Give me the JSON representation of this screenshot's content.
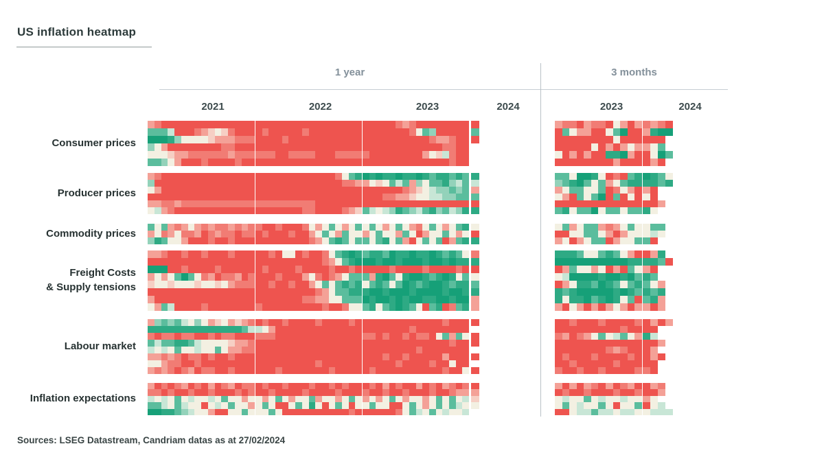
{
  "title": "US inflation heatmap",
  "footer": {
    "sources": "Sources: LSEG Datastream, Candriam datas as at 27/02/2024"
  },
  "chart_data": {
    "type": "heatmap",
    "title": "US inflation heatmap",
    "value_encoding": "each char is a palette index 0-9 (0 = deep green / disinflation, 5 = neutral cream, 9 = deep red / inflation); '.' = no data",
    "palette": [
      "#16a078",
      "#2eaa84",
      "#5bbd9d",
      "#93d2ba",
      "#c8e6d6",
      "#f3f0e2",
      "#f6cfc4",
      "#f4a197",
      "#f17c74",
      "#ee544f"
    ],
    "sections": [
      {
        "label": "1 year",
        "years": [
          "2021",
          "2022",
          "2023",
          "2024"
        ]
      },
      {
        "label": "3 months",
        "years": [
          "2023",
          "2024"
        ]
      }
    ],
    "blocks": [
      {
        "label": "Consumer prices",
        "rows": [
          {
            "y2021": "7899999999999999",
            "y2022": "9999999999999999",
            "y2023": "9999987899999999",
            "y2024": "9",
            "m2023": "788978895797",
            "m2024": "8789"
          },
          {
            "y2021": "2224999876568999",
            "y2022": "9899999899999999",
            "y2023": "9999999852399999",
            "y2024": "2",
            "m2023": "925779952099",
            "m2024": "7100"
          },
          {
            "y2021": "0001355556777888",
            "y2022": "9999899999999999",
            "y2023": "9999999999877899",
            "y2024": "9",
            "m2023": "999999995999",
            "m2024": "999."
          },
          {
            "y2021": "3579999999988999",
            "y2022": "9999999999999999",
            "y2023": "9999999999998899",
            "y2024": ".",
            "m2023": "999995979757",
            "m2024": "752."
          },
          {
            "y2021": "5556778888887888",
            "y2022": "8889988889998888",
            "y2023": "8999999997564899",
            "y2024": ".",
            "m2023": "597979911079",
            "m2024": "9502"
          },
          {
            "y2021": "2235799989999899",
            "y2022": "9999999999999999",
            "y2023": "9999999999999899",
            "y2024": ".",
            "m2023": "999999997999",
            "m2024": "979."
          }
        ]
      },
      {
        "label": "Producer prices",
        "rows": [
          {
            "y2021": "7899999999999999",
            "y2022": "9999999999998521",
            "y2023": "0101101101211212",
            "y2024": "1",
            "m2023": "225001598921",
            "m2024": "0125"
          },
          {
            "y2021": "3999999999999999",
            "y2022": "9999999999999887",
            "y2023": "7565242735221342",
            "y2024": "4",
            "m2023": "321025275211",
            "m2024": "1121"
          },
          {
            "y2021": "5799999999999999",
            "y2022": "9999999999999999",
            "y2023": "9999998765433232",
            "y2024": "7",
            "m2023": "752255298579",
            "m2024": "79.."
          },
          {
            "y2021": "9999999999999999",
            "y2022": "9999999999999999",
            "y2023": "9998877655443322",
            "y2024": "2",
            "m2023": "579252092959",
            "m2024": "59.."
          },
          {
            "y2021": "7788788888888888",
            "y2022": "8888888889999999",
            "y2023": "9999999999999999",
            "y2024": "9",
            "m2023": "999999999999",
            "m2024": "997."
          },
          {
            "y2021": "5478999999999999",
            "y2022": "9999999889999876",
            "y2023": "2454312342132431",
            "y2024": "1",
            "m2023": "215220522522",
            "m2024": "15.."
          }
        ]
      },
      {
        "label": "Commodity prices",
        "rows": [
          {
            "y2021": "2527875787887878",
            "y2022": "8998999857525752",
            "y2023": "5257525785257521",
            "y2024": "5",
            "m2023": "527522787525",
            "m2024": "522."
          },
          {
            "y2021": "7587588798788988",
            "y2022": "9899989975257255",
            "y2023": "7525572597552575",
            "y2024": "9",
            "m2023": "995522579755",
            "m2024": "545."
          },
          {
            "y2021": "3125579998998999",
            "y2022": "9999999987521252",
            "y2023": "2521527952529721",
            "y2024": "1",
            "m2023": "759752297552",
            "m2024": "29.."
          }
        ]
      },
      {
        "label": "Freight Costs\n& Supply tensions",
        "rows": [
          {
            "y2021": "7789989989998999",
            "y2022": "9989559899852101",
            "y2023": "2112011011012125",
            "y2024": "8",
            "m2023": "111255212579",
            "m2024": "971."
          },
          {
            "y2021": "9999999999999999",
            "y2022": "9999999999875210",
            "y2023": "0010010001001011",
            "y2024": "1",
            "m2023": "000000000011",
            "m2024": "1129"
          },
          {
            "y2021": "0009989999899999",
            "y2022": "9899998999989989",
            "y2023": "9999899998999989",
            "y2024": "9",
            "m2023": "972557597925",
            "m2024": "79.."
          },
          {
            "y2021": "7575202587988798",
            "y2022": "9998999758987522",
            "y2023": "2710251001210152",
            "y2024": "5",
            "m2023": "540000100102",
            "m2024": "12.."
          },
          {
            "y2021": "6556555655657888",
            "y2022": "9989989975252121",
            "y2023": "5212520121001211",
            "y2024": "2",
            "m2023": "975112012521",
            "m2024": "257."
          },
          {
            "y2021": "9999999999999999",
            "y2022": "9999999998752211",
            "y2023": "1001000100001001",
            "y2024": "1",
            "m2023": "121000001012",
            "m2024": "121."
          },
          {
            "y2021": "7999999999999999",
            "y2022": "9999999887755222",
            "y2023": "0100101001100100",
            "y2024": "7",
            "m2023": "151102101529",
            "m2024": "217."
          },
          {
            "y2021": "5724999989999999",
            "y2022": "8999999999899855",
            "y2023": "2152101259219821",
            "y2024": "7",
            "m2023": "795797975797",
            "m2024": "797."
          }
        ]
      },
      {
        "label": "Labour market",
        "rows": [
          {
            "y2021": "7323245357657678",
            "y2022": "9899899998999989",
            "y2023": "9999999999998999",
            "y2024": "9",
            "m2023": "998999899998",
            "m2024": "9797"
          },
          {
            "y2021": "1111111111111124",
            "y2022": "4579999999999999",
            "y2023": "9999999899999999",
            "y2024": ".",
            "m2023": "999999999899",
            "m2024": "99.."
          },
          {
            "y2021": "8988988998988999",
            "y2022": "8889999999999999",
            "y2023": "8898998988952725",
            "y2024": "9",
            "m2023": "879875254257",
            "m2024": "14.."
          },
          {
            "y2021": "2422112455556778",
            "y2022": "9999999999999999",
            "y2023": "9999999999999899",
            "y2024": "9",
            "m2023": "999999999999",
            "m2024": "997."
          },
          {
            "y2021": "4545255455257788",
            "y2022": "9999999999999999",
            "y2023": "9999999989999999",
            "y2024": ".",
            "m2023": "999999987899",
            "m2024": "97.."
          },
          {
            "y2021": "7787898898998999",
            "y2022": "9999999999999999",
            "y2023": "9998998999997999",
            "y2024": "9",
            "m2023": "989998999989",
            "m2024": "979."
          },
          {
            "y2021": "5578899899999999",
            "y2022": "9999999998999999",
            "y2023": "9999989999899599",
            "y2024": ".",
            "m2023": "998999998999",
            "m2024": "99.."
          },
          {
            "y2021": "7878987988998999",
            "y2022": "9998999999989999",
            "y2023": "9899999999998995",
            "y2024": "9",
            "m2023": "899899899998",
            "m2024": "89.."
          }
        ]
      },
      {
        "label": "Inflation expectations",
        "rows": [
          {
            "y2021": "7989879897987988",
            "y2022": "9899899989989899",
            "y2023": "9897989979897898",
            "y2024": "9",
            "m2023": "797978979879",
            "m2024": "978."
          },
          {
            "y2021": "8898998998999898",
            "y2022": "9989999899998999",
            "y2023": "8998998999899877",
            "y2024": "7",
            "m2023": "989989998998",
            "m2024": "997."
          },
          {
            "y2021": "4545254554525575",
            "y2022": "5752575527557525",
            "y2023": "7575257557525254",
            "y2024": "6",
            "m2023": "545525455455",
            "m2024": "75.."
          },
          {
            "y2021": "2245245595452557",
            "y2022": "5259952515952595",
            "y2023": "5255995257525245",
            "y2024": "5",
            "m2023": "525455259552",
            "m2024": "954."
          },
          {
            "y2021": "0011234557995525",
            "y2022": "5525999999999989",
            "y2023": "9999985245254554",
            "y2024": ".",
            "m2023": "995442445445",
            "m2024": "5444"
          }
        ]
      }
    ]
  }
}
